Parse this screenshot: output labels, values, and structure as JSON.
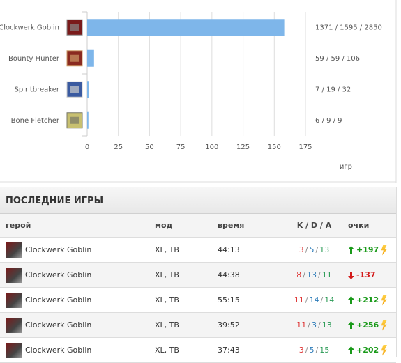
{
  "chart_data": {
    "type": "bar",
    "orientation": "horizontal",
    "categories": [
      "Clockwerk Goblin",
      "Bounty Hunter",
      "Spiritbreaker",
      "Bone Fletcher"
    ],
    "values": [
      158,
      5.5,
      1.5,
      1
    ],
    "color": "#7eb6ea",
    "stats": [
      "1371 / 1595 / 2850",
      "59 / 59 / 106",
      "7 / 19 / 32",
      "6 / 9 / 9"
    ],
    "xlim": [
      0,
      175
    ],
    "xticks": [
      0,
      25,
      50,
      75,
      100,
      125,
      150,
      175
    ],
    "xlabel": "игр",
    "grid": true
  },
  "recent_games": {
    "title": "ПОСЛЕДНИЕ ИГРЫ",
    "kda_separator": "/",
    "headers": [
      "герой",
      "мод",
      "время",
      "K / D / A",
      "очки"
    ],
    "rows": [
      {
        "hero": "Clockwerk Goblin",
        "mode": "XL, TB",
        "time": "44:13",
        "kda": [
          "3",
          "5",
          "13"
        ],
        "points": "+197",
        "bonus": true
      },
      {
        "hero": "Clockwerk Goblin",
        "mode": "XL, TB",
        "time": "44:38",
        "kda": [
          "8",
          "13",
          "11"
        ],
        "points": "-137",
        "bonus": false
      },
      {
        "hero": "Clockwerk Goblin",
        "mode": "XL, TB",
        "time": "55:15",
        "kda": [
          "11",
          "14",
          "14"
        ],
        "points": "+212",
        "bonus": true
      },
      {
        "hero": "Clockwerk Goblin",
        "mode": "XL, TB",
        "time": "39:52",
        "kda": [
          "11",
          "3",
          "13"
        ],
        "points": "+256",
        "bonus": true
      },
      {
        "hero": "Clockwerk Goblin",
        "mode": "XL, TB",
        "time": "37:43",
        "kda": [
          "3",
          "5",
          "15"
        ],
        "points": "+202",
        "bonus": true
      }
    ]
  }
}
